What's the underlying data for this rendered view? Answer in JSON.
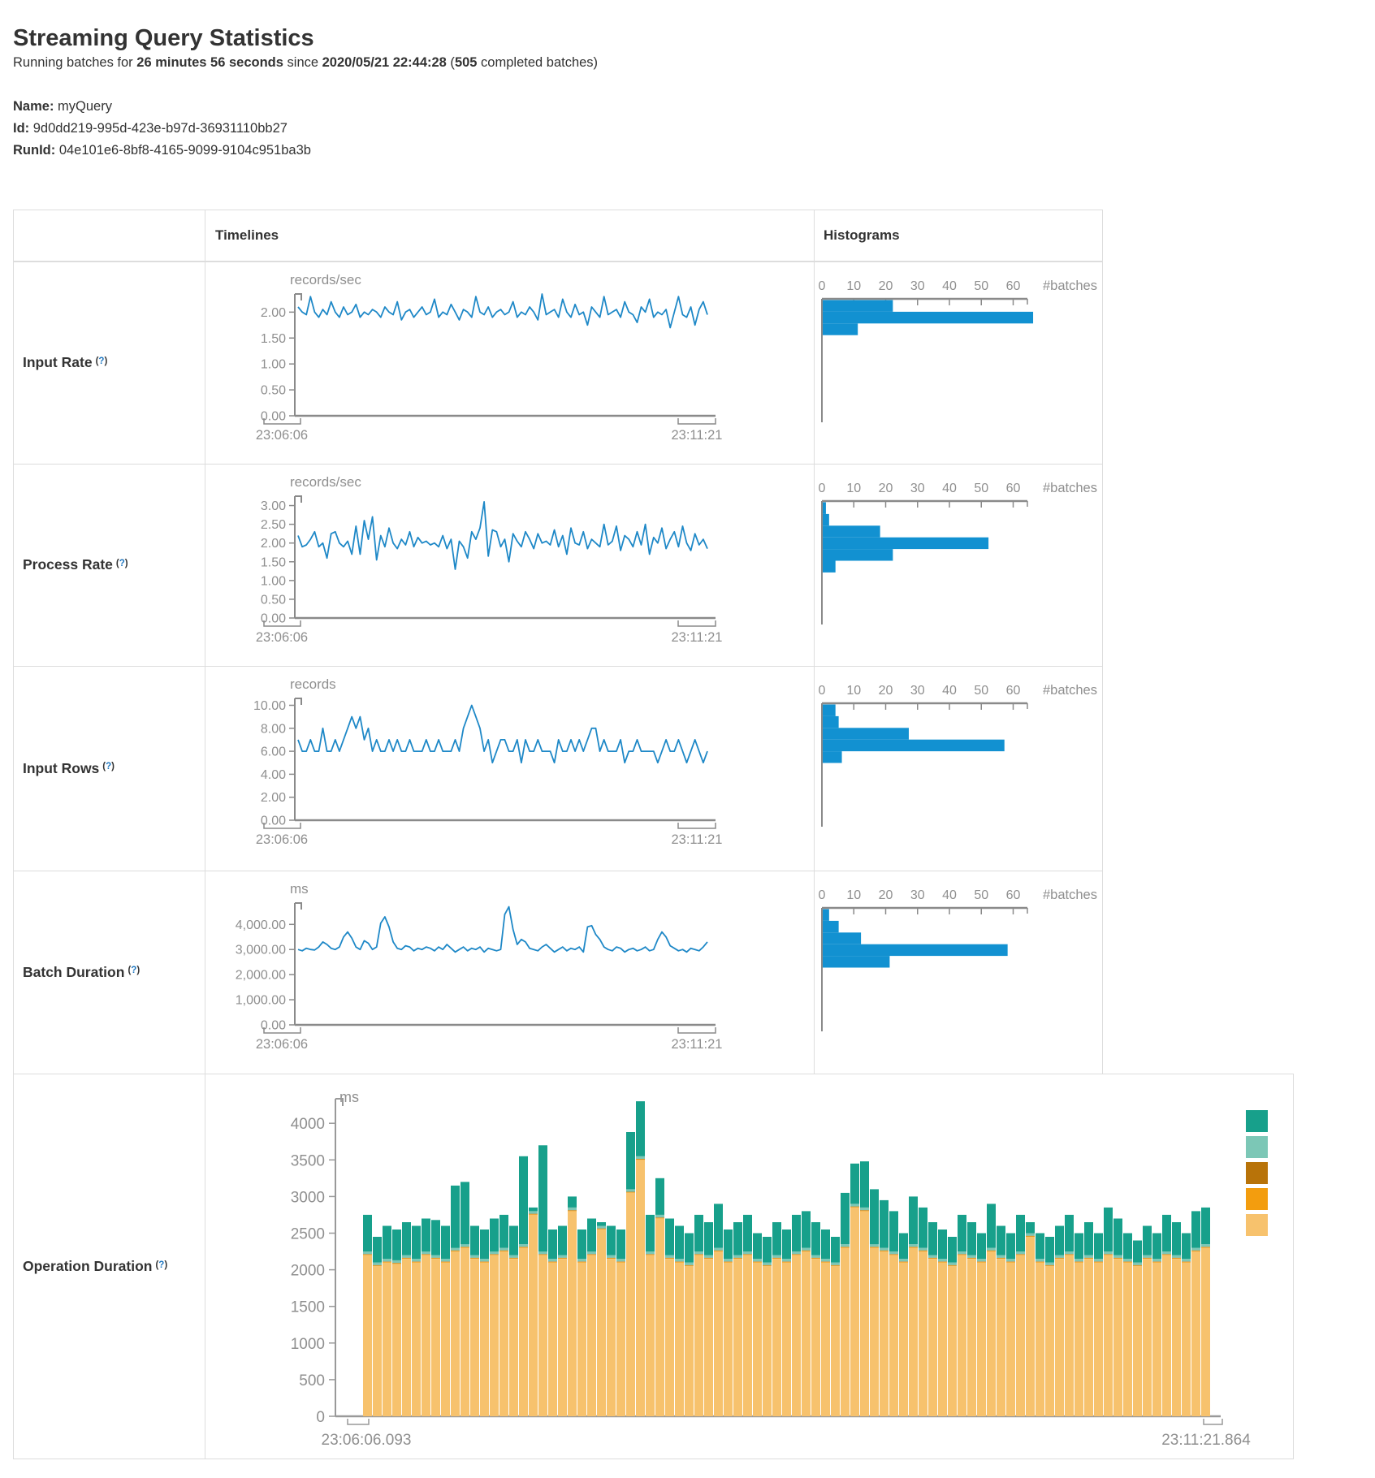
{
  "page": {
    "title": "Streaming Query Statistics"
  },
  "subtitle": {
    "prefix": "Running batches for ",
    "duration": "26 minutes 56 seconds",
    "mid": " since ",
    "start_time": "2020/05/21 22:44:28",
    "paren_open": " (",
    "batch_count": "505",
    "suffix": " completed batches)"
  },
  "query_info": {
    "name_label": "Name:",
    "name": " myQuery",
    "id_label": "Id:",
    "id": " 9d0dd219-995d-423e-b97d-36931110bb27",
    "runid_label": "RunId:",
    "runid": " 04e101e6-8bf8-4165-9099-9104c951ba3b"
  },
  "table": {
    "col_timelines": "Timelines",
    "col_histograms": "Histograms",
    "help_open": "(",
    "help_q": "?",
    "help_close": ")"
  },
  "rows": [
    {
      "label": "Input Rate"
    },
    {
      "label": "Process Rate"
    },
    {
      "label": "Input Rows"
    },
    {
      "label": "Batch Duration"
    },
    {
      "label": "Operation Duration"
    }
  ],
  "colors": {
    "line_blue": "#1e88c7",
    "hist_blue": "#1291d1",
    "axis_gray": "#8a8a8a",
    "teal": "#17a08b",
    "light_teal": "#7cc7b6",
    "dark_orange": "#b87309",
    "orange": "#f39d0e",
    "tan": "#f7c26d"
  },
  "chart_data": [
    {
      "id": "input_rate_tl",
      "type": "line",
      "unit": "records/sec",
      "x_start": "23:06:06",
      "x_end": "23:11:21",
      "y_max": 2.35,
      "color": "#1e88c7",
      "y_ticks": [
        {
          "v": 2,
          "t": "2.00"
        },
        {
          "v": 1.5,
          "t": "1.50"
        },
        {
          "v": 1,
          "t": "1.00"
        },
        {
          "v": 0.5,
          "t": "0.50"
        },
        {
          "v": 0,
          "t": "0.00"
        }
      ],
      "values": [
        2.1,
        2.0,
        1.95,
        2.3,
        2.0,
        1.9,
        2.05,
        1.95,
        2.2,
        2.0,
        1.9,
        2.1,
        1.95,
        2.0,
        2.15,
        1.9,
        2.0,
        1.95,
        2.05,
        2.0,
        1.9,
        2.1,
        2.0,
        1.95,
        2.2,
        1.85,
        2.0,
        2.05,
        1.9,
        2.0,
        2.1,
        1.95,
        2.0,
        2.25,
        1.9,
        2.0,
        1.95,
        2.15,
        2.0,
        1.85,
        2.05,
        2.0,
        1.9,
        2.3,
        2.0,
        1.95,
        2.1,
        1.9,
        2.0,
        2.05,
        1.95,
        2.0,
        2.2,
        1.9,
        2.0,
        1.95,
        2.1,
        2.0,
        1.85,
        2.35,
        1.95,
        2.0,
        2.05,
        1.9,
        2.25,
        2.0,
        1.9,
        2.15,
        1.95,
        2.0,
        1.75,
        2.1,
        2.0,
        1.9,
        2.3,
        1.95,
        2.0,
        2.05,
        1.9,
        2.2,
        2.0,
        1.95,
        1.8,
        2.1,
        2.0,
        2.25,
        1.9,
        2.0,
        1.95,
        2.05,
        1.7,
        2.0,
        2.3,
        1.95,
        1.9,
        2.1,
        1.75,
        2.05,
        2.2,
        1.95
      ]
    },
    {
      "id": "input_rate_hist",
      "type": "hbar",
      "x_label": "#batches",
      "x_ticks": [
        0,
        10,
        20,
        30,
        40,
        50,
        60
      ],
      "color": "#1291d1",
      "values": [
        22,
        66,
        11
      ]
    },
    {
      "id": "process_rate_tl",
      "type": "line",
      "unit": "records/sec",
      "x_start": "23:06:06",
      "x_end": "23:11:21",
      "y_max": 3.25,
      "color": "#1e88c7",
      "y_ticks": [
        {
          "v": 3,
          "t": "3.00"
        },
        {
          "v": 2.5,
          "t": "2.50"
        },
        {
          "v": 2,
          "t": "2.00"
        },
        {
          "v": 1.5,
          "t": "1.50"
        },
        {
          "v": 1,
          "t": "1.00"
        },
        {
          "v": 0.5,
          "t": "0.50"
        },
        {
          "v": 0,
          "t": "0.00"
        }
      ],
      "values": [
        2.2,
        1.9,
        1.95,
        2.1,
        2.3,
        1.9,
        2.0,
        1.6,
        2.25,
        2.3,
        2.0,
        1.9,
        2.05,
        1.7,
        2.45,
        1.7,
        2.6,
        2.1,
        2.7,
        1.55,
        2.2,
        1.9,
        2.4,
        2.0,
        1.85,
        2.1,
        1.95,
        2.3,
        1.9,
        2.15,
        2.0,
        2.05,
        1.95,
        2.0,
        1.9,
        2.2,
        1.85,
        2.1,
        1.3,
        2.05,
        1.9,
        1.6,
        2.3,
        2.1,
        2.4,
        3.1,
        1.65,
        2.35,
        2.3,
        1.9,
        2.1,
        1.5,
        2.25,
        2.05,
        1.9,
        2.3,
        2.1,
        1.85,
        2.25,
        2.0,
        2.05,
        1.95,
        2.35,
        1.9,
        2.2,
        1.7,
        2.4,
        2.0,
        1.95,
        2.3,
        1.85,
        2.1,
        2.0,
        1.9,
        2.5,
        1.95,
        2.05,
        2.45,
        1.8,
        2.2,
        2.1,
        1.9,
        2.3,
        1.95,
        2.5,
        1.7,
        2.15,
        2.0,
        2.4,
        1.85,
        2.1,
        2.3,
        1.9,
        2.45,
        2.0,
        1.8,
        2.25,
        1.95,
        2.1,
        1.85
      ]
    },
    {
      "id": "process_rate_hist",
      "type": "hbar",
      "x_label": "#batches",
      "x_ticks": [
        0,
        10,
        20,
        30,
        40,
        50,
        60
      ],
      "color": "#1291d1",
      "values": [
        1,
        2,
        18,
        52,
        22,
        4
      ]
    },
    {
      "id": "input_rows_tl",
      "type": "line",
      "unit": "records",
      "x_start": "23:06:06",
      "x_end": "23:11:21",
      "y_max": 10.6,
      "color": "#1e88c7",
      "y_ticks": [
        {
          "v": 10,
          "t": "10.00"
        },
        {
          "v": 8,
          "t": "8.00"
        },
        {
          "v": 6,
          "t": "6.00"
        },
        {
          "v": 4,
          "t": "4.00"
        },
        {
          "v": 2,
          "t": "2.00"
        },
        {
          "v": 0,
          "t": "0.00"
        }
      ],
      "values": [
        7,
        6,
        6,
        7,
        6,
        6,
        8,
        6,
        6,
        7,
        6,
        7,
        8,
        9,
        8,
        9,
        7,
        8,
        6,
        7,
        6,
        6,
        7,
        6,
        7,
        6,
        6,
        7,
        6,
        6,
        6,
        7,
        6,
        6,
        7,
        6,
        6,
        6,
        7,
        6,
        8,
        9,
        10,
        9,
        8,
        6,
        7,
        5,
        6,
        7,
        7,
        6,
        6,
        7,
        5,
        7,
        6,
        6,
        7,
        6,
        6,
        6,
        5,
        7,
        6,
        6,
        7,
        6,
        7,
        6,
        7,
        8,
        8,
        6,
        7,
        6,
        6,
        6,
        7,
        5,
        6,
        6,
        7,
        6,
        6,
        6,
        6,
        5,
        6,
        7,
        6,
        6,
        7,
        6,
        5,
        6,
        7,
        6,
        5,
        6
      ]
    },
    {
      "id": "input_rows_hist",
      "type": "hbar",
      "x_label": "#batches",
      "x_ticks": [
        0,
        10,
        20,
        30,
        40,
        50,
        60
      ],
      "color": "#1291d1",
      "values": [
        4,
        5,
        27,
        57,
        6
      ]
    },
    {
      "id": "batch_duration_tl",
      "type": "line",
      "unit": "ms",
      "x_start": "23:06:06",
      "x_end": "23:11:21",
      "y_max": 4850,
      "color": "#1e88c7",
      "y_ticks": [
        {
          "v": 4000,
          "t": "4,000.00"
        },
        {
          "v": 3000,
          "t": "3,000.00"
        },
        {
          "v": 2000,
          "t": "2,000.00"
        },
        {
          "v": 1000,
          "t": "1,000.00"
        },
        {
          "v": 0,
          "t": "0.00"
        }
      ],
      "values": [
        3000,
        2950,
        3050,
        3000,
        2980,
        3100,
        3300,
        3200,
        3050,
        3000,
        3100,
        3500,
        3700,
        3450,
        3100,
        3000,
        3350,
        3250,
        3000,
        3100,
        4050,
        4300,
        3900,
        3300,
        3050,
        3000,
        3150,
        3100,
        2950,
        3050,
        3000,
        3100,
        3050,
        2950,
        3100,
        3000,
        3200,
        3050,
        2900,
        3000,
        3100,
        2950,
        3050,
        3000,
        3100,
        2900,
        3050,
        3000,
        2950,
        3000,
        4400,
        4700,
        3800,
        3200,
        3400,
        3300,
        3050,
        3000,
        2950,
        3100,
        3200,
        3050,
        2900,
        3000,
        3100,
        2950,
        3050,
        3000,
        3100,
        2900,
        3900,
        3950,
        3600,
        3400,
        3100,
        3000,
        2950,
        3100,
        3050,
        2900,
        3000,
        3050,
        2950,
        3000,
        3100,
        2950,
        3000,
        3400,
        3700,
        3500,
        3150,
        3050,
        2950,
        3000,
        2900,
        3050,
        3000,
        2950,
        3100,
        3300
      ]
    },
    {
      "id": "batch_duration_hist",
      "type": "hbar",
      "x_label": "#batches",
      "x_ticks": [
        0,
        10,
        20,
        30,
        40,
        50,
        60
      ],
      "color": "#1291d1",
      "values": [
        2,
        5,
        12,
        58,
        21
      ]
    },
    {
      "id": "operation_duration",
      "type": "stacked-bar",
      "unit": "ms",
      "x_start": "23:06:06.093",
      "x_end": "23:11:21.864",
      "y_ticks": [
        {
          "v": 4000,
          "t": "4000"
        },
        {
          "v": 3500,
          "t": "3500"
        },
        {
          "v": 3000,
          "t": "3000"
        },
        {
          "v": 2500,
          "t": "2500"
        },
        {
          "v": 2000,
          "t": "2000"
        },
        {
          "v": 1500,
          "t": "1500"
        },
        {
          "v": 1000,
          "t": "1000"
        },
        {
          "v": 500,
          "t": "500"
        },
        {
          "v": 0,
          "t": "0"
        }
      ],
      "legend_colors": [
        "#17a08b",
        "#7cc7b6",
        "#b87309",
        "#f39d0e",
        "#f7c26d"
      ],
      "series": [
        {
          "color": "#f7c26d",
          "values": [
            2200,
            2050,
            2100,
            2080,
            2150,
            2100,
            2200,
            2150,
            2100,
            2250,
            2300,
            2150,
            2100,
            2200,
            2250,
            2150,
            2300,
            2750,
            2200,
            2100,
            2150,
            2800,
            2100,
            2200,
            2550,
            2150,
            2100,
            3050,
            3500,
            2200,
            2700,
            2150,
            2100,
            2050,
            2200,
            2150,
            2250,
            2100,
            2150,
            2200,
            2100,
            2050,
            2150,
            2100,
            2200,
            2250,
            2150,
            2100,
            2050,
            2300,
            2850,
            2800,
            2300,
            2250,
            2200,
            2100,
            2300,
            2250,
            2150,
            2100,
            2050,
            2200,
            2150,
            2100,
            2250,
            2150,
            2100,
            2200,
            2450,
            2100,
            2050,
            2150,
            2200,
            2100,
            2150,
            2100,
            2200,
            2150,
            2100,
            2050,
            2150,
            2100,
            2200,
            2150,
            2100,
            2250,
            2300
          ]
        },
        {
          "color": "#f39d0e",
          "values": [
            8,
            8,
            8,
            8,
            8,
            8,
            8,
            8,
            8,
            8,
            8,
            8,
            8,
            8,
            8,
            8,
            8,
            8,
            8,
            8,
            8,
            8,
            8,
            8,
            8,
            8,
            8,
            8,
            8,
            8,
            8,
            8,
            8,
            8,
            8,
            8,
            8,
            8,
            8,
            8,
            8,
            8,
            8,
            8,
            8,
            8,
            8,
            8,
            8,
            8,
            8,
            8,
            8,
            8,
            8,
            8,
            8,
            8,
            8,
            8,
            8,
            8,
            8,
            8,
            8,
            8,
            8,
            8,
            8,
            8,
            8,
            8,
            8,
            8,
            8,
            8,
            8,
            8,
            8,
            8,
            8,
            8,
            8,
            8,
            8,
            8,
            8
          ]
        },
        {
          "color": "#b87309",
          "values": [
            7,
            7,
            7,
            7,
            7,
            7,
            7,
            7,
            7,
            7,
            7,
            7,
            7,
            7,
            7,
            7,
            7,
            7,
            7,
            7,
            7,
            7,
            7,
            7,
            7,
            7,
            7,
            7,
            7,
            7,
            7,
            7,
            7,
            7,
            7,
            7,
            7,
            7,
            7,
            7,
            7,
            7,
            7,
            7,
            7,
            7,
            7,
            7,
            7,
            7,
            7,
            7,
            7,
            7,
            7,
            7,
            7,
            7,
            7,
            7,
            7,
            7,
            7,
            7,
            7,
            7,
            7,
            7,
            7,
            7,
            7,
            7,
            7,
            7,
            7,
            7,
            7,
            7,
            7,
            7,
            7,
            7,
            7,
            7,
            7,
            7,
            7
          ]
        },
        {
          "color": "#7cc7b6",
          "values": [
            35,
            35,
            35,
            35,
            35,
            35,
            35,
            35,
            35,
            35,
            35,
            35,
            35,
            35,
            35,
            35,
            35,
            35,
            35,
            35,
            35,
            35,
            35,
            35,
            35,
            35,
            35,
            35,
            35,
            35,
            35,
            35,
            35,
            35,
            35,
            35,
            35,
            35,
            35,
            35,
            35,
            35,
            35,
            35,
            35,
            35,
            35,
            35,
            35,
            35,
            35,
            35,
            35,
            35,
            35,
            35,
            35,
            35,
            35,
            35,
            35,
            35,
            35,
            35,
            35,
            35,
            35,
            35,
            35,
            35,
            35,
            35,
            35,
            35,
            35,
            35,
            35,
            35,
            35,
            35,
            35,
            35,
            35,
            35,
            35,
            35,
            35
          ]
        },
        {
          "color": "#17a08b",
          "values": [
            500,
            350,
            450,
            420,
            450,
            450,
            450,
            480,
            450,
            850,
            850,
            400,
            400,
            450,
            450,
            400,
            1200,
            50,
            1450,
            400,
            400,
            150,
            400,
            450,
            50,
            400,
            400,
            780,
            750,
            500,
            500,
            500,
            450,
            400,
            500,
            450,
            600,
            400,
            450,
            500,
            350,
            350,
            450,
            400,
            500,
            500,
            450,
            400,
            350,
            700,
            550,
            630,
            750,
            650,
            550,
            350,
            650,
            550,
            450,
            400,
            350,
            500,
            450,
            350,
            600,
            400,
            350,
            500,
            150,
            350,
            350,
            400,
            500,
            350,
            450,
            350,
            600,
            500,
            350,
            300,
            400,
            350,
            500,
            450,
            350,
            500,
            500
          ]
        }
      ]
    }
  ]
}
